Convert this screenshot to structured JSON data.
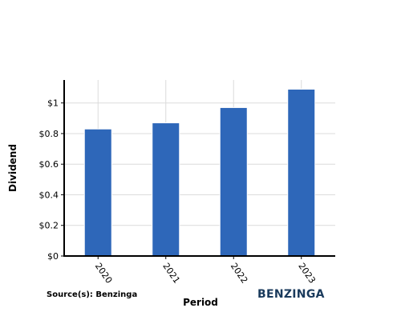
{
  "chart_data": {
    "type": "bar",
    "title": "",
    "xlabel": "Period",
    "ylabel": "Dividend",
    "categories": [
      "2020",
      "2021",
      "2022",
      "2023"
    ],
    "values": [
      0.83,
      0.87,
      0.97,
      1.09
    ],
    "ylim": [
      0,
      1.15
    ],
    "yticks": [
      0,
      0.2,
      0.4,
      0.6,
      0.8,
      1
    ],
    "ytick_labels": [
      "$0",
      "$0.2",
      "$0.4",
      "$0.6",
      "$0.8",
      "$1"
    ],
    "grid": true,
    "bar_color": "#2e67b9"
  },
  "footer": {
    "source": "Source(s): Benzinga",
    "brand": "BENZINGA"
  }
}
